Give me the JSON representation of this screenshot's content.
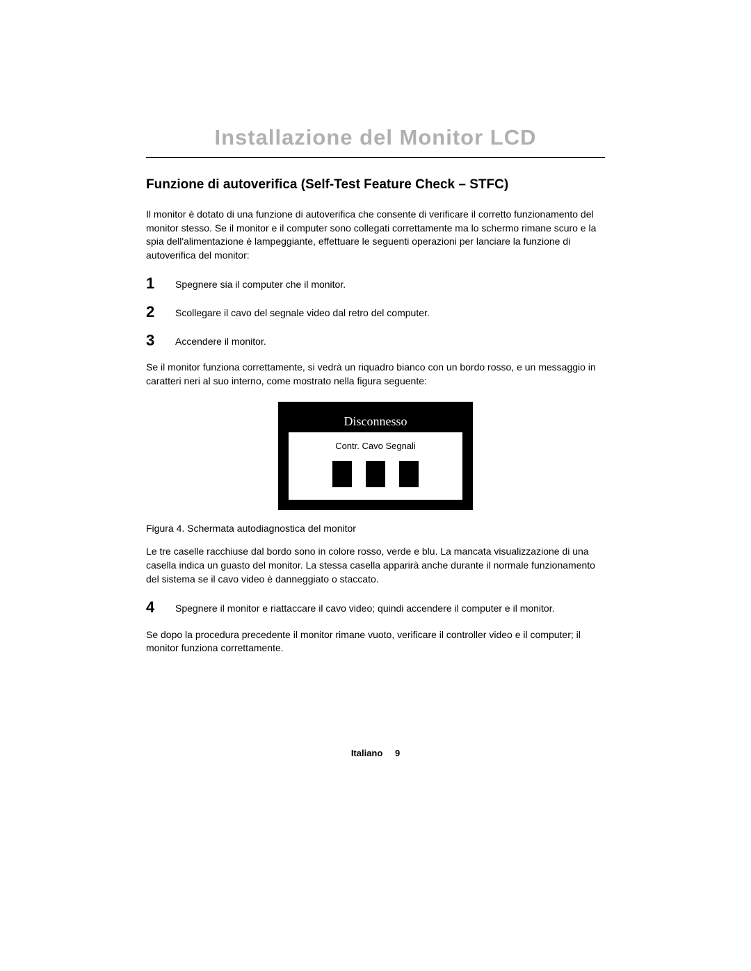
{
  "title": "Installazione del Monitor LCD",
  "subtitle": "Funzione di autoverifica (Self-Test Feature Check – STFC)",
  "intro": "Il monitor è dotato di una funzione di autoverifica che consente di verificare il corretto funzionamento del monitor stesso. Se il monitor e il computer sono collegati correttamente ma lo schermo rimane scuro e la spia dell'alimentazione è lampeggiante, effettuare le seguenti operazioni per lanciare la funzione di autoverifica del monitor:",
  "steps_a": [
    {
      "num": "1",
      "text": "Spegnere sia il computer che il monitor."
    },
    {
      "num": "2",
      "text": "Scollegare il cavo del segnale video dal retro del computer."
    },
    {
      "num": "3",
      "text": "Accendere il monitor."
    }
  ],
  "mid_para": "Se il monitor funziona correttamente, si vedrà un riquadro bianco con un bordo rosso, e un messaggio in caratteri neri al suo interno, come mostrato nella figura seguente:",
  "figure": {
    "header": "Disconnesso",
    "sub": "Contr. Cavo Segnali",
    "outer_bg": "#000000",
    "inner_bg": "#ffffff",
    "square_color": "#000000"
  },
  "caption": "Figura 4.  Schermata autodiagnostica del monitor",
  "after_fig": "Le tre caselle racchiuse dal bordo sono in colore rosso, verde e blu. La mancata visualizzazione di una casella indica un guasto del monitor. La stessa casella apparirà anche durante il normale funzionamento del sistema se il  cavo video è danneggiato o staccato.",
  "step4": {
    "num": "4",
    "text": "Spegnere il monitor e riattaccare il cavo video; quindi accendere il computer e il monitor."
  },
  "closing": "Se dopo la procedura precedente il monitor rimane vuoto, verificare il controller video e il computer; il monitor funziona correttamente.",
  "footer": {
    "lang": "Italiano",
    "page": "9"
  },
  "colors": {
    "title_color": "#b0b0b0",
    "text_color": "#000000",
    "bg": "#ffffff"
  }
}
